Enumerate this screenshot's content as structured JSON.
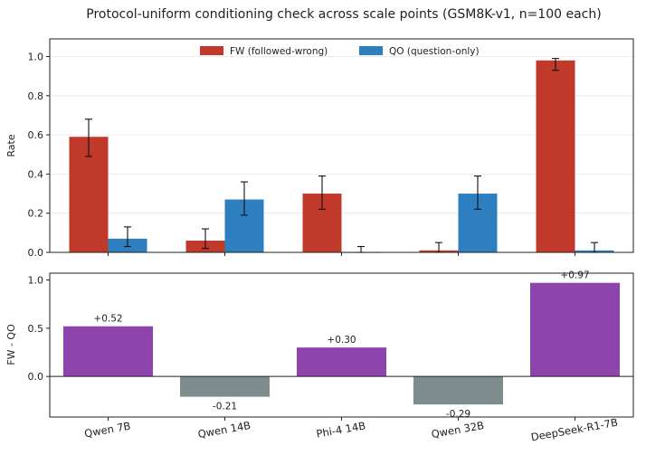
{
  "chart_data": [
    {
      "type": "bar",
      "title": "Protocol-uniform conditioning check across scale points (GSM8K-v1, n=100 each)",
      "ylabel": "Rate",
      "ylim": [
        0,
        1.09
      ],
      "yticks": [
        "0.0",
        "0.2",
        "0.4",
        "0.6",
        "0.8",
        "1.0"
      ],
      "grid": "horizontal",
      "legend": "top-center",
      "categories": [
        "Qwen 7B",
        "Qwen 14B",
        "Phi-4 14B",
        "Qwen 32B",
        "DeepSeek-R1-7B"
      ],
      "series": [
        {
          "name": "FW (followed-wrong)",
          "color": "#c0392b",
          "values": [
            0.59,
            0.06,
            0.3,
            0.01,
            0.98
          ],
          "error_low": [
            0.49,
            0.02,
            0.22,
            0.0,
            0.93
          ],
          "error_high": [
            0.68,
            0.12,
            0.39,
            0.05,
            0.99
          ]
        },
        {
          "name": "QO (question-only)",
          "color": "#2e7fbf",
          "values": [
            0.07,
            0.27,
            0.0,
            0.3,
            0.01
          ],
          "error_low": [
            0.03,
            0.19,
            0.0,
            0.22,
            0.0
          ],
          "error_high": [
            0.13,
            0.36,
            0.03,
            0.39,
            0.05
          ]
        }
      ]
    },
    {
      "type": "bar",
      "ylabel": "FW - QO",
      "ylim": [
        -0.42,
        1.07
      ],
      "yticks": [
        "0.0",
        "0.5",
        "1.0"
      ],
      "categories": [
        "Qwen 7B",
        "Qwen 14B",
        "Phi-4 14B",
        "Qwen 32B",
        "DeepSeek-R1-7B"
      ],
      "values": [
        0.52,
        -0.21,
        0.3,
        -0.29,
        0.97
      ],
      "labels": [
        "+0.52",
        "-0.21",
        "+0.30",
        "-0.29",
        "+0.97"
      ],
      "positive_color": "#8e44ad",
      "negative_color": "#7f8c8d"
    }
  ]
}
